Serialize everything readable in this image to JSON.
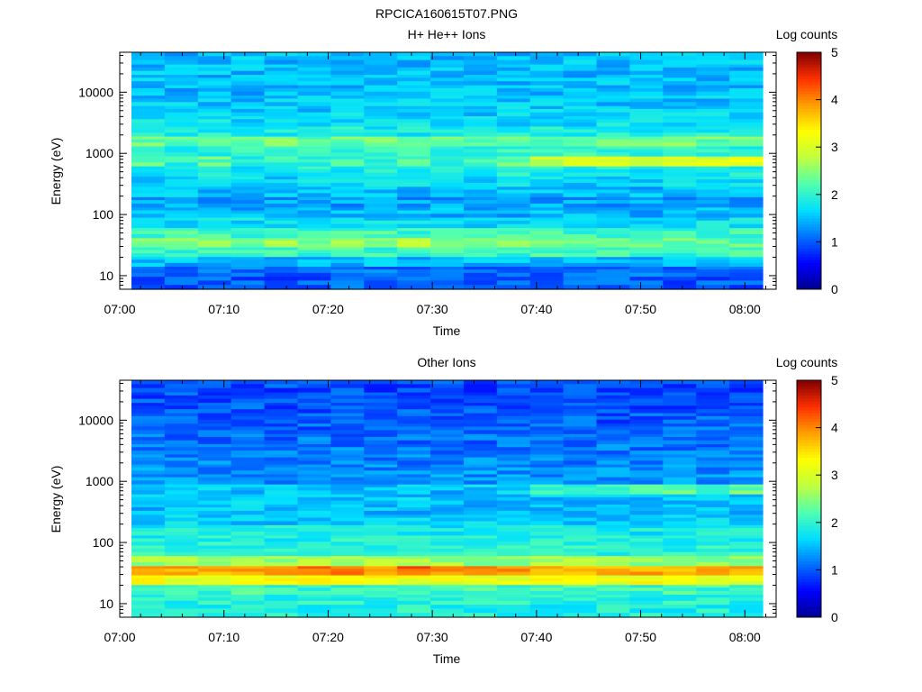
{
  "figure": {
    "title": "RPCICA160615T07.PNG"
  },
  "colors": {
    "colormap": [
      "#00008f",
      "#0000ff",
      "#0070ff",
      "#00dfff",
      "#50ffaf",
      "#bfff40",
      "#ffff00",
      "#ff9f00",
      "#ff3000",
      "#800000"
    ]
  },
  "chart_data": [
    {
      "type": "heatmap",
      "title": "H+ He++ Ions",
      "xlabel": "Time",
      "ylabel": "Energy (eV)",
      "colorbar_label": "Log counts",
      "colorbar_range": [
        0,
        5
      ],
      "colorbar_ticks": [
        "0",
        "1",
        "2",
        "3",
        "4",
        "5"
      ],
      "y_scale": "log",
      "ylim": [
        6,
        45000
      ],
      "y_ticks": [
        {
          "value": 10,
          "label": "10"
        },
        {
          "value": 100,
          "label": "100"
        },
        {
          "value": 1000,
          "label": "1000"
        },
        {
          "value": 10000,
          "label": "10000"
        }
      ],
      "xlim": [
        "07:00",
        "08:03"
      ],
      "x_ticks": [
        "07:00",
        "07:10",
        "07:20",
        "07:30",
        "07:40",
        "07:50",
        "08:00"
      ],
      "time_bins": [
        "07:01",
        "07:04",
        "07:07",
        "07:10",
        "07:14",
        "07:17",
        "07:20",
        "07:24",
        "07:27",
        "07:30",
        "07:33",
        "07:37",
        "07:40",
        "07:43",
        "07:46",
        "07:50",
        "07:53",
        "07:56",
        "07:59"
      ],
      "energy_bins_eV": [
        8,
        12,
        17,
        25,
        35,
        50,
        75,
        110,
        160,
        240,
        350,
        520,
        750,
        1100,
        1600,
        2300,
        3400,
        5000,
        7300,
        11000,
        16000,
        24000,
        35000
      ],
      "mean_log_counts": [
        1.0,
        1.1,
        1.5,
        2.1,
        2.55,
        2.1,
        1.7,
        1.45,
        1.35,
        1.5,
        1.65,
        1.85,
        2.4,
        2.0,
        2.35,
        1.85,
        1.7,
        1.6,
        1.55,
        1.5,
        1.5,
        1.5,
        1.5
      ],
      "band_note_rows": [
        {
          "energy_eV": 750,
          "values": [
            2.3,
            2.0,
            2.3,
            1.9,
            2.1,
            2.0,
            2.1,
            2.0,
            2.2,
            2.0,
            2.1,
            2.3,
            2.9,
            2.9,
            3.0,
            3.1,
            3.1,
            3.0,
            3.2
          ]
        },
        {
          "energy_eV": 35,
          "values": [
            2.6,
            2.5,
            2.5,
            2.5,
            2.7,
            2.5,
            2.5,
            2.5,
            2.7,
            2.5,
            2.4,
            2.4,
            2.5,
            2.4,
            2.4,
            2.4,
            2.4,
            2.4,
            2.3
          ]
        }
      ]
    },
    {
      "type": "heatmap",
      "title": "Other Ions",
      "xlabel": "Time",
      "ylabel": "Energy (eV)",
      "colorbar_label": "Log counts",
      "colorbar_range": [
        0,
        5
      ],
      "colorbar_ticks": [
        "0",
        "1",
        "2",
        "3",
        "4",
        "5"
      ],
      "y_scale": "log",
      "ylim": [
        6,
        45000
      ],
      "y_ticks": [
        {
          "value": 10,
          "label": "10"
        },
        {
          "value": 100,
          "label": "100"
        },
        {
          "value": 1000,
          "label": "1000"
        },
        {
          "value": 10000,
          "label": "10000"
        }
      ],
      "xlim": [
        "07:00",
        "08:03"
      ],
      "x_ticks": [
        "07:00",
        "07:10",
        "07:20",
        "07:30",
        "07:40",
        "07:50",
        "08:00"
      ],
      "time_bins": [
        "07:01",
        "07:04",
        "07:07",
        "07:10",
        "07:14",
        "07:17",
        "07:20",
        "07:24",
        "07:27",
        "07:30",
        "07:33",
        "07:37",
        "07:40",
        "07:43",
        "07:46",
        "07:50",
        "07:53",
        "07:56",
        "07:59"
      ],
      "energy_bins_eV": [
        8,
        12,
        17,
        25,
        35,
        50,
        75,
        110,
        160,
        240,
        350,
        520,
        750,
        1100,
        1600,
        2300,
        3400,
        5000,
        7300,
        11000,
        16000,
        24000,
        35000
      ],
      "mean_log_counts": [
        1.9,
        1.95,
        2.1,
        3.2,
        4.0,
        2.6,
        2.0,
        1.9,
        1.8,
        1.6,
        1.5,
        1.55,
        1.6,
        1.3,
        1.25,
        1.2,
        1.15,
        1.1,
        1.05,
        1.0,
        0.95,
        0.95,
        0.9
      ],
      "band_note_rows": [
        {
          "energy_eV": 35,
          "values": [
            3.9,
            3.8,
            3.7,
            3.8,
            4.1,
            4.0,
            4.0,
            4.0,
            4.2,
            4.0,
            3.9,
            3.9,
            3.9,
            3.8,
            3.8,
            3.8,
            3.8,
            3.8,
            3.7
          ]
        },
        {
          "energy_eV": 750,
          "values": [
            1.6,
            1.5,
            1.7,
            1.5,
            1.6,
            1.5,
            1.5,
            1.5,
            1.5,
            1.5,
            1.6,
            1.6,
            2.0,
            2.1,
            2.1,
            2.2,
            2.2,
            2.2,
            2.3
          ]
        }
      ]
    }
  ]
}
